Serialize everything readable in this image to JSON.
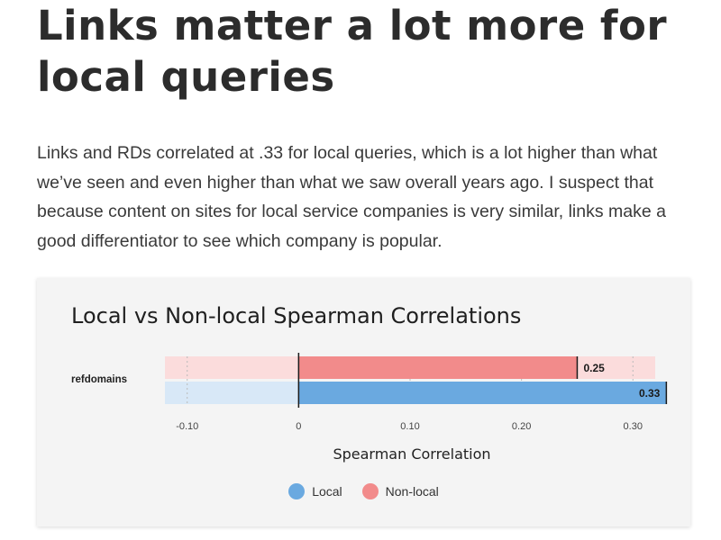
{
  "article": {
    "headline": "Links matter a lot more for local queries",
    "paragraph": "Links and RDs correlated at .33 for local queries, which is a lot higher than what we’ve seen and even higher than what we saw overall years ago. I suspect that because content on sites for local service companies is very similar, links make a good differentiator to see which company is popular."
  },
  "colors": {
    "local": "#6aa9e0",
    "local_bg": "#d8e8f7",
    "nonlocal": "#f28b8b",
    "nonlocal_bg": "#fbdcdc"
  },
  "chart_data": {
    "type": "bar",
    "orientation": "horizontal",
    "title": "Local vs Non-local Spearman Correlations",
    "xlabel": "Spearman Correlation",
    "ylabel": "",
    "categories": [
      "refdomains"
    ],
    "series": [
      {
        "name": "Non-local",
        "values": [
          0.25
        ],
        "color": "#f28b8b",
        "label": "0.25"
      },
      {
        "name": "Local",
        "values": [
          0.33
        ],
        "color": "#6aa9e0",
        "label": "0.33"
      }
    ],
    "xlim": [
      -0.12,
      0.32
    ],
    "xticks": [
      -0.1,
      0,
      0.1,
      0.2,
      0.3
    ],
    "xtick_labels": [
      "-0.10",
      "0",
      "0.10",
      "0.20",
      "0.30"
    ],
    "grid": true,
    "legend": [
      "Local",
      "Non-local"
    ],
    "legend_position": "bottom"
  }
}
